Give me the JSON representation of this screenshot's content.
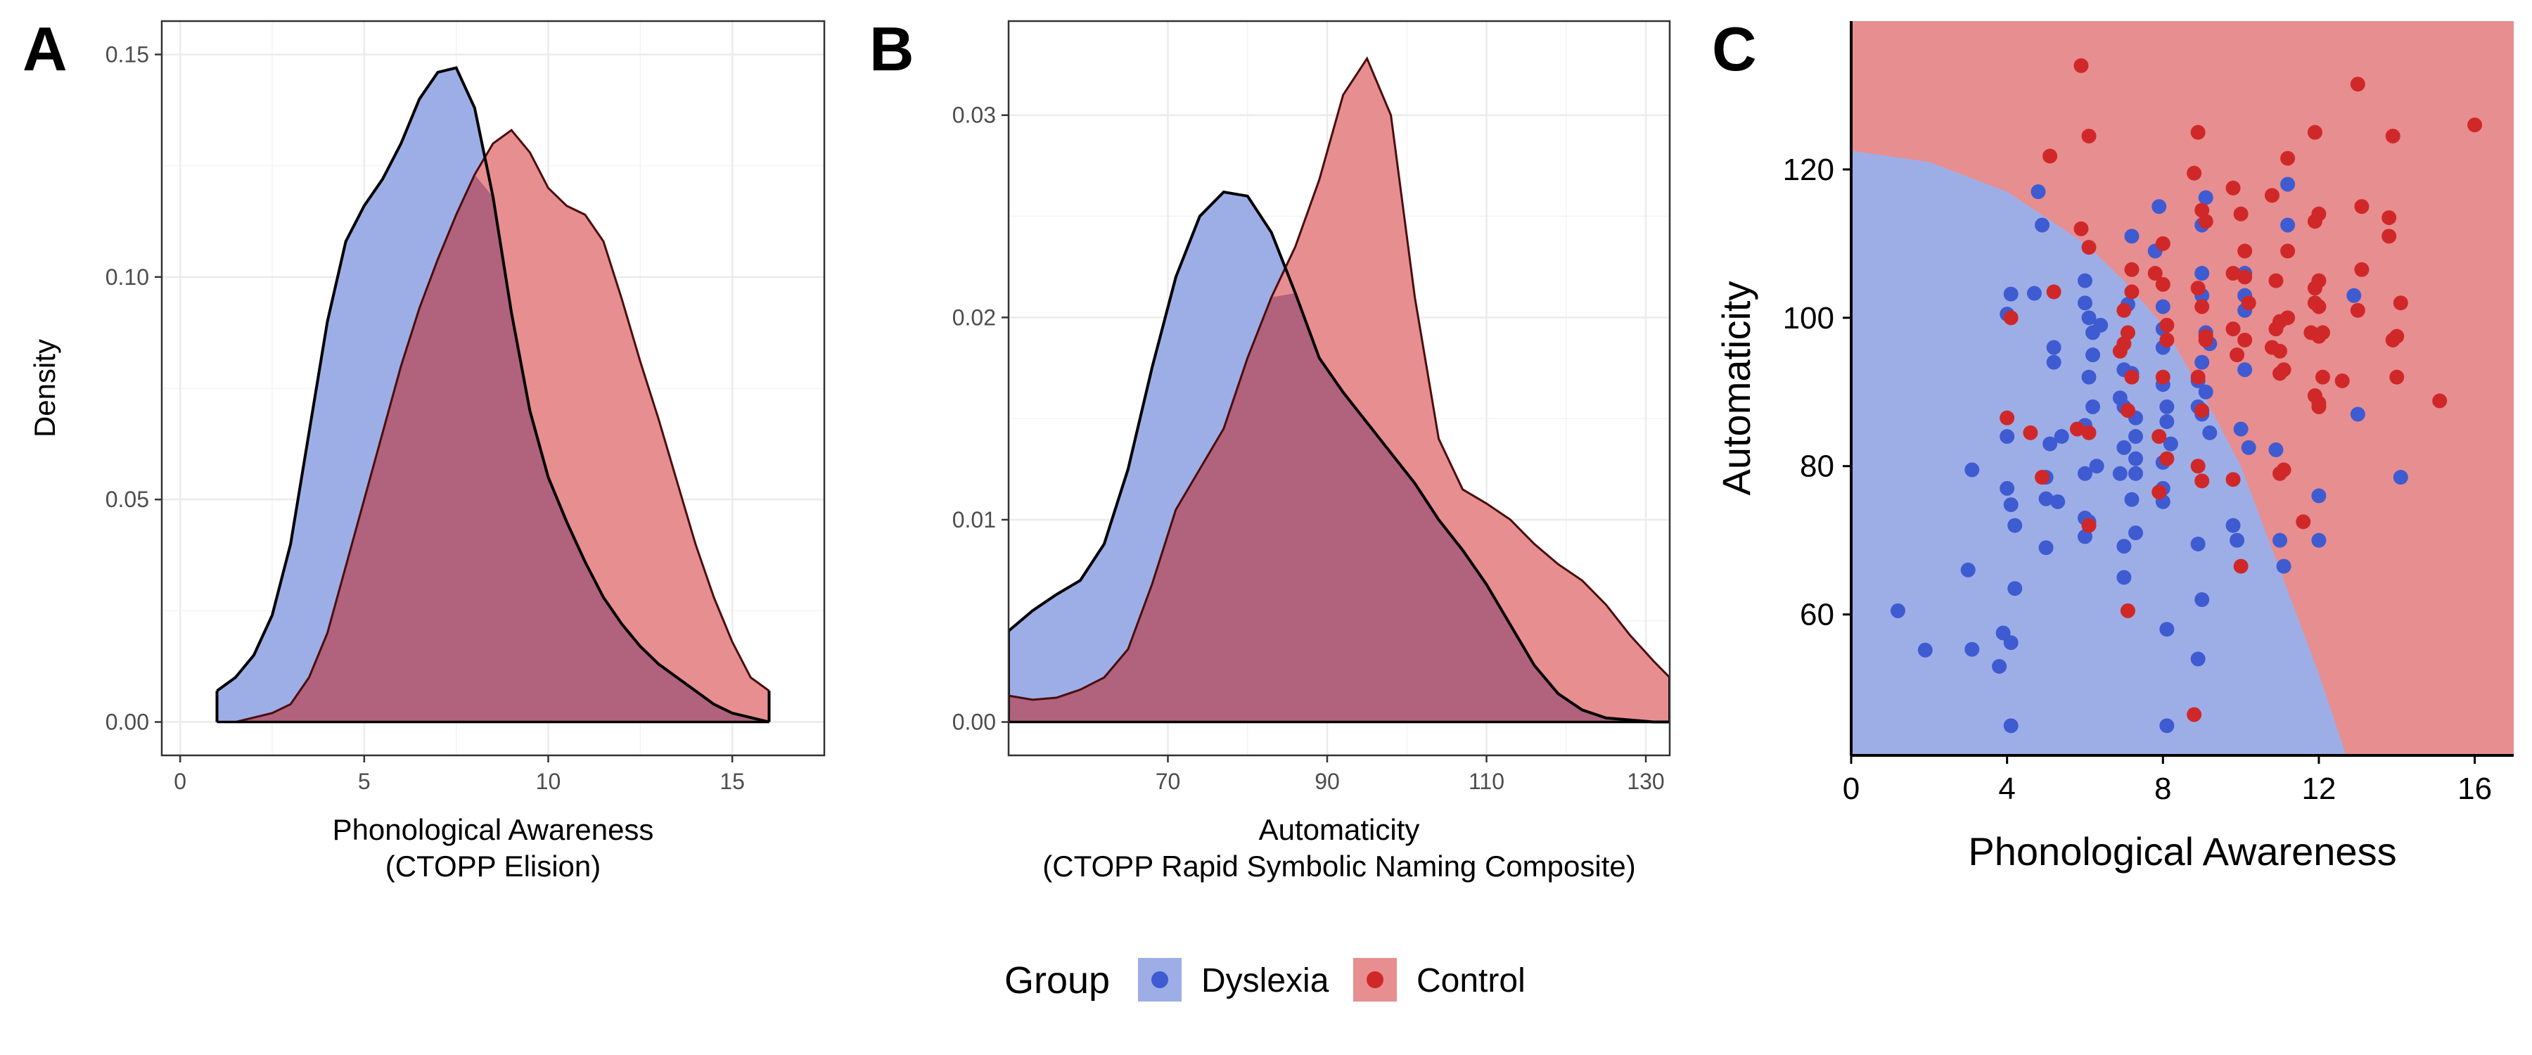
{
  "colors": {
    "dyslexia_fill": "#9DAEE7",
    "control_fill": "#E78E91",
    "overlap_fill": "#B1627C",
    "dyslexia_point": "#3F5BD1",
    "control_point": "#D02828",
    "grid": "#ebebeb"
  },
  "legend": {
    "title": "Group",
    "entries": [
      {
        "label": "Dyslexia",
        "key": "dyslexia"
      },
      {
        "label": "Control",
        "key": "control"
      }
    ]
  },
  "panels": {
    "A": {
      "letter": "A"
    },
    "B": {
      "letter": "B"
    },
    "C": {
      "letter": "C"
    }
  },
  "chart_data": [
    {
      "panel": "A",
      "type": "area",
      "xlabel": [
        "Phonological Awareness",
        "(CTOPP Elision)"
      ],
      "ylabel": "Density",
      "xlim": [
        -0.5,
        17.5
      ],
      "ylim": [
        -0.0075,
        0.1575
      ],
      "xticks": [
        0,
        5,
        10,
        15
      ],
      "xtick_labels": [
        "0",
        "5",
        "10",
        "15"
      ],
      "yticks": [
        0,
        0.05,
        0.1,
        0.15
      ],
      "ytick_labels": [
        "0.00",
        "0.05",
        "0.10",
        "0.15"
      ],
      "x": [
        1,
        1.5,
        2,
        2.5,
        3,
        3.5,
        4,
        4.5,
        5,
        5.5,
        6,
        6.5,
        7,
        7.5,
        8,
        8.5,
        9,
        9.5,
        10,
        10.5,
        11,
        11.5,
        12,
        12.5,
        13,
        13.5,
        14,
        14.5,
        15,
        15.5,
        16
      ],
      "series": [
        {
          "name": "Dyslexia",
          "key": "dyslexia",
          "values": [
            0.007,
            0.01,
            0.015,
            0.024,
            0.04,
            0.065,
            0.09,
            0.108,
            0.116,
            0.122,
            0.13,
            0.14,
            0.146,
            0.147,
            0.138,
            0.118,
            0.092,
            0.07,
            0.055,
            0.045,
            0.036,
            0.028,
            0.022,
            0.017,
            0.013,
            0.01,
            0.007,
            0.004,
            0.002,
            0.001,
            0.0
          ]
        },
        {
          "name": "Control",
          "key": "control",
          "values": [
            0.0,
            0.0,
            0.001,
            0.002,
            0.004,
            0.01,
            0.02,
            0.035,
            0.05,
            0.065,
            0.08,
            0.093,
            0.104,
            0.114,
            0.123,
            0.13,
            0.133,
            0.128,
            0.12,
            0.116,
            0.114,
            0.108,
            0.095,
            0.081,
            0.068,
            0.054,
            0.04,
            0.028,
            0.018,
            0.01,
            0.007
          ]
        }
      ]
    },
    {
      "panel": "B",
      "type": "area",
      "xlabel": [
        "Automaticity",
        "(CTOPP Rapid Symbolic Naming Composite)"
      ],
      "ylabel": "",
      "xlim": [
        50,
        133
      ],
      "ylim": [
        -0.00165,
        0.03465
      ],
      "xticks": [
        70,
        90,
        110,
        130
      ],
      "xtick_labels": [
        "70",
        "90",
        "110",
        "130"
      ],
      "yticks": [
        0,
        0.01,
        0.02,
        0.03
      ],
      "ytick_labels": [
        "0.00",
        "0.01",
        "0.02",
        "0.03"
      ],
      "x": [
        50,
        53,
        56,
        59,
        62,
        65,
        68,
        71,
        74,
        77,
        80,
        83,
        86,
        89,
        92,
        95,
        98,
        101,
        104,
        107,
        110,
        113,
        116,
        119,
        122,
        125,
        128,
        131,
        133
      ],
      "series": [
        {
          "name": "Dyslexia",
          "key": "dyslexia",
          "values": [
            0.0045,
            0.0055,
            0.0063,
            0.007,
            0.0088,
            0.0125,
            0.0175,
            0.022,
            0.025,
            0.0262,
            0.026,
            0.0242,
            0.0212,
            0.018,
            0.0163,
            0.0148,
            0.0133,
            0.0118,
            0.01,
            0.0085,
            0.0068,
            0.0048,
            0.0028,
            0.0014,
            0.0006,
            0.0002,
            0.0001,
            0.0,
            0.0
          ]
        },
        {
          "name": "Control",
          "key": "control",
          "values": [
            0.0013,
            0.0011,
            0.0012,
            0.0016,
            0.0022,
            0.0036,
            0.0068,
            0.0105,
            0.0125,
            0.0145,
            0.018,
            0.021,
            0.0235,
            0.0268,
            0.031,
            0.0328,
            0.03,
            0.021,
            0.014,
            0.0115,
            0.0108,
            0.01,
            0.0088,
            0.0078,
            0.007,
            0.0058,
            0.0043,
            0.003,
            0.0022
          ]
        }
      ]
    },
    {
      "panel": "C",
      "type": "scatter",
      "xlabel": "Phonological Awareness",
      "ylabel": "Automaticity",
      "xlim": [
        0,
        17
      ],
      "ylim": [
        41,
        140
      ],
      "xticks": [
        0,
        4,
        8,
        12,
        16
      ],
      "xtick_labels": [
        "0",
        "4",
        "8",
        "12",
        "16"
      ],
      "yticks": [
        60,
        80,
        100,
        120
      ],
      "ytick_labels": [
        "60",
        "80",
        "100",
        "120"
      ],
      "decision_boundary": {
        "description": "dyslexia region in lower-left",
        "x": [
          0,
          2,
          4,
          6,
          7,
          8,
          9,
          10,
          11,
          12,
          12.7
        ],
        "y": [
          122.5,
          121,
          117,
          110,
          105,
          99,
          90,
          80,
          66,
          52,
          41
        ]
      },
      "series": [
        {
          "name": "Dyslexia",
          "key": "dyslexia",
          "points": [
            [
              1.2,
              60.5
            ],
            [
              1.9,
              55.2
            ],
            [
              3.1,
              79.5
            ],
            [
              3,
              66
            ],
            [
              3.1,
              55.3
            ],
            [
              3.8,
              53
            ],
            [
              3.9,
              57.5
            ],
            [
              4,
              84
            ],
            [
              4,
              77
            ],
            [
              4,
              100.5
            ],
            [
              4.1,
              103.2
            ],
            [
              4.1,
              74.8
            ],
            [
              4.2,
              72
            ],
            [
              4.1,
              56.2
            ],
            [
              4.2,
              63.5
            ],
            [
              4.1,
              45
            ],
            [
              4.8,
              117
            ],
            [
              4.9,
              112.5
            ],
            [
              5,
              78.5
            ],
            [
              5,
              75.6
            ],
            [
              5,
              69
            ],
            [
              5.1,
              83
            ],
            [
              5.2,
              96
            ],
            [
              5.2,
              94
            ],
            [
              5.3,
              75.2
            ],
            [
              5.4,
              84
            ],
            [
              4.7,
              103.3
            ],
            [
              6,
              105
            ],
            [
              6,
              102
            ],
            [
              6.1,
              100
            ],
            [
              6.2,
              98
            ],
            [
              6.1,
              92
            ],
            [
              6.2,
              88
            ],
            [
              6,
              85.5
            ],
            [
              6.3,
              80
            ],
            [
              6,
              79
            ],
            [
              6,
              73
            ],
            [
              6.1,
              72.5
            ],
            [
              6,
              70.5
            ],
            [
              6.2,
              95
            ],
            [
              6.4,
              99
            ],
            [
              6.9,
              79
            ],
            [
              7,
              82.5
            ],
            [
              7,
              88
            ],
            [
              7,
              93
            ],
            [
              6.9,
              89.2
            ],
            [
              7,
              69.2
            ],
            [
              7,
              65
            ],
            [
              7.2,
              111
            ],
            [
              7.1,
              101.8
            ],
            [
              7.2,
              92.5
            ],
            [
              7.3,
              86.5
            ],
            [
              7.3,
              84
            ],
            [
              7.3,
              81
            ],
            [
              7.3,
              79
            ],
            [
              7.3,
              71
            ],
            [
              7.2,
              75.5
            ],
            [
              7.9,
              115
            ],
            [
              7.8,
              109
            ],
            [
              8,
              101.5
            ],
            [
              8,
              98.5
            ],
            [
              8,
              96
            ],
            [
              8,
              91
            ],
            [
              8.1,
              88
            ],
            [
              8.1,
              86
            ],
            [
              8.2,
              83
            ],
            [
              8,
              80.5
            ],
            [
              8,
              77
            ],
            [
              8,
              75.2
            ],
            [
              8.1,
              58
            ],
            [
              8.1,
              45
            ],
            [
              8.9,
              88
            ],
            [
              8.9,
              91.5
            ],
            [
              9,
              94
            ],
            [
              9,
              87
            ],
            [
              8.9,
              69.5
            ],
            [
              9,
              62
            ],
            [
              8.9,
              54
            ],
            [
              9.1,
              116.2
            ],
            [
              9,
              112.5
            ],
            [
              9,
              106
            ],
            [
              9,
              103
            ],
            [
              9.1,
              98
            ],
            [
              9.2,
              96.5
            ],
            [
              9.1,
              90
            ],
            [
              9.2,
              84.5
            ],
            [
              9.8,
              72
            ],
            [
              9.9,
              70
            ],
            [
              10,
              85
            ],
            [
              10.1,
              93
            ],
            [
              10.1,
              101
            ],
            [
              10.1,
              103
            ],
            [
              10.1,
              106
            ],
            [
              10.2,
              82.5
            ],
            [
              10.9,
              82.2
            ],
            [
              11,
              70
            ],
            [
              11.1,
              66.5
            ],
            [
              11.2,
              112.5
            ],
            [
              11.2,
              118
            ],
            [
              12,
              76
            ],
            [
              12,
              70
            ],
            [
              12.9,
              103
            ],
            [
              13,
              87
            ],
            [
              14.1,
              78.5
            ]
          ]
        },
        {
          "name": "Control",
          "key": "control",
          "points": [
            [
              4,
              86.5
            ],
            [
              4.1,
              100
            ],
            [
              4.6,
              84.5
            ],
            [
              4.9,
              78.5
            ],
            [
              5.1,
              121.8
            ],
            [
              5.2,
              103.5
            ],
            [
              5.9,
              134
            ],
            [
              6.1,
              124.5
            ],
            [
              5.9,
              112
            ],
            [
              6.1,
              109.5
            ],
            [
              5.8,
              85
            ],
            [
              6.1,
              84.5
            ],
            [
              6.1,
              72
            ],
            [
              6.9,
              95.5
            ],
            [
              7,
              101
            ],
            [
              7.1,
              98
            ],
            [
              7,
              96.5
            ],
            [
              7.2,
              106.5
            ],
            [
              7.2,
              103.5
            ],
            [
              7.2,
              92
            ],
            [
              7.1,
              87.5
            ],
            [
              7.1,
              60.5
            ],
            [
              8,
              110
            ],
            [
              7.8,
              106
            ],
            [
              8,
              104.5
            ],
            [
              8.1,
              99
            ],
            [
              8.1,
              97
            ],
            [
              8,
              92
            ],
            [
              8.1,
              81
            ],
            [
              7.9,
              76.5
            ],
            [
              7.9,
              84
            ],
            [
              8.8,
              119.5
            ],
            [
              8.9,
              125
            ],
            [
              9,
              114.5
            ],
            [
              9.1,
              113
            ],
            [
              8.9,
              104
            ],
            [
              9,
              101.5
            ],
            [
              9.1,
              97.5
            ],
            [
              9.1,
              97
            ],
            [
              8.9,
              92
            ],
            [
              9,
              87.5
            ],
            [
              8.9,
              80
            ],
            [
              9,
              78
            ],
            [
              8.8,
              46.5
            ],
            [
              9.8,
              98.5
            ],
            [
              9.9,
              95
            ],
            [
              9.8,
              106
            ],
            [
              9.8,
              117.5
            ],
            [
              9.8,
              78.2
            ],
            [
              10,
              114
            ],
            [
              10.1,
              109
            ],
            [
              10.1,
              105.5
            ],
            [
              10.1,
              97
            ],
            [
              10,
              66.5
            ],
            [
              10.2,
              102
            ],
            [
              10.8,
              116.5
            ],
            [
              10.9,
              98.5
            ],
            [
              10.8,
              96
            ],
            [
              11,
              92.5
            ],
            [
              11,
              95.5
            ],
            [
              11,
              99.5
            ],
            [
              10.9,
              105
            ],
            [
              11,
              79
            ],
            [
              11.1,
              79.5
            ],
            [
              11.2,
              121.5
            ],
            [
              11.2,
              109
            ],
            [
              11.1,
              93
            ],
            [
              11.2,
              100
            ],
            [
              11.6,
              72.5
            ],
            [
              11.8,
              98
            ],
            [
              11.9,
              125
            ],
            [
              12,
              101.5
            ],
            [
              12,
              97.5
            ],
            [
              12.1,
              98
            ],
            [
              11.9,
              113
            ],
            [
              12,
              114
            ],
            [
              12,
              105
            ],
            [
              12,
              88
            ],
            [
              12,
              88.5
            ],
            [
              11.9,
              89.5
            ],
            [
              12.1,
              92
            ],
            [
              11.9,
              102
            ],
            [
              11.9,
              104
            ],
            [
              12.6,
              91.5
            ],
            [
              13,
              131.5
            ],
            [
              13.1,
              115
            ],
            [
              13.1,
              106.5
            ],
            [
              13,
              101
            ],
            [
              13.8,
              113.5
            ],
            [
              13.8,
              111
            ],
            [
              13.9,
              97
            ],
            [
              13.9,
              124.5
            ],
            [
              14,
              97.5
            ],
            [
              14,
              92
            ],
            [
              14.1,
              102
            ],
            [
              15.1,
              88.8
            ],
            [
              16,
              126
            ]
          ]
        }
      ]
    }
  ]
}
